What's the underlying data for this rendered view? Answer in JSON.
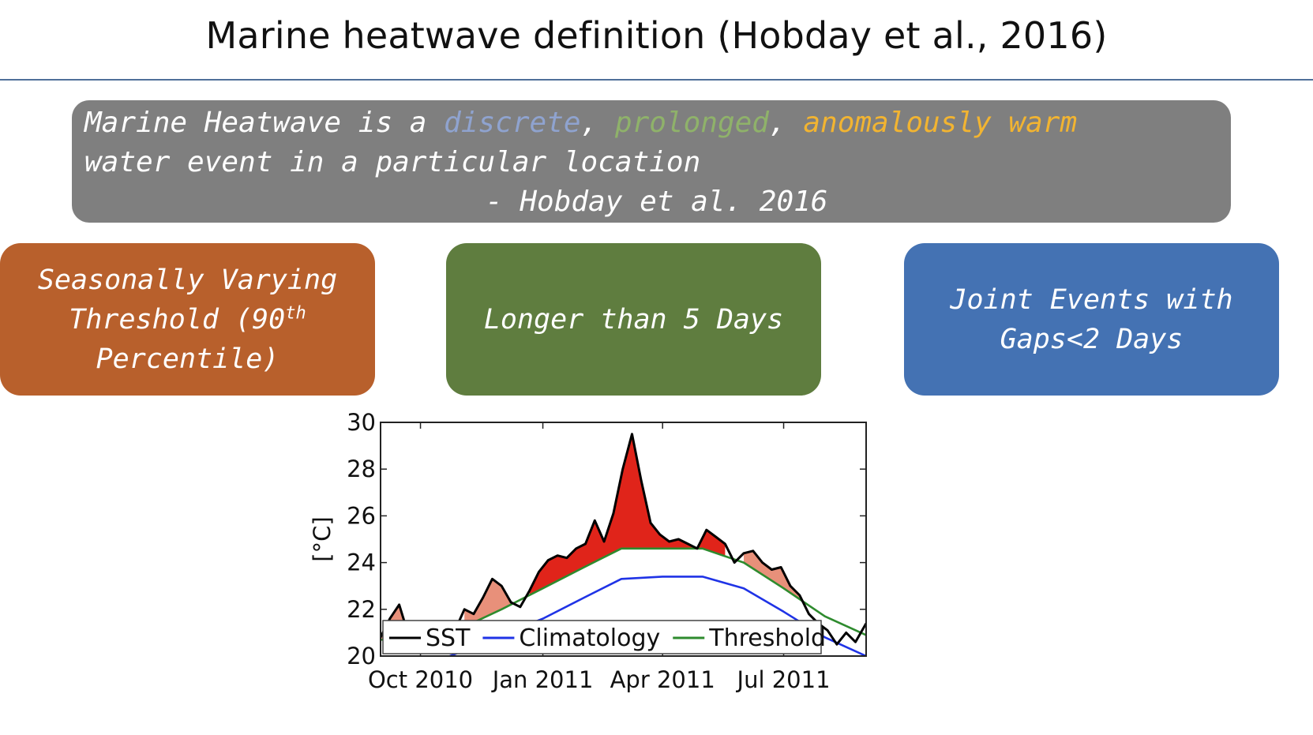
{
  "slide": {
    "title": "Marine heatwave definition (Hobday et al., 2016)"
  },
  "definition": {
    "part1": "Marine Heatwave is a ",
    "discrete": "discrete",
    "sep1": ", ",
    "prolonged": "prolonged",
    "sep2": ", ",
    "anomalous": "anomalously warm",
    "line2": "water event in a particular location",
    "citation": "- Hobday et al. 2016",
    "colors": {
      "discrete": "#8fa3cf",
      "prolonged": "#8fb26a",
      "anomalous": "#f2b431",
      "box": "#7f7f7f"
    }
  },
  "criteria": {
    "threshold_line1": "Seasonally Varying",
    "threshold_line2": "Threshold (90",
    "threshold_sup": "th",
    "threshold_line3": "Percentile)",
    "duration": "Longer than 5 Days",
    "joint_line1": "Joint Events with",
    "joint_line2": "Gaps<2 Days",
    "colors": {
      "threshold": "#b8602c",
      "duration": "#5f7d3f",
      "joint": "#4472b3"
    }
  },
  "chart_data": {
    "type": "line",
    "xlabel": "",
    "ylabel": "[°C]",
    "ylim": [
      20,
      30
    ],
    "yticks": [
      "20",
      "22",
      "24",
      "26",
      "28",
      "30"
    ],
    "xticks": [
      {
        "date": "2010-10-01",
        "label": "Oct 2010"
      },
      {
        "date": "2011-01-01",
        "label": "Jan 2011"
      },
      {
        "date": "2011-04-01",
        "label": "Apr 2011"
      },
      {
        "date": "2011-07-01",
        "label": "Jul 2011"
      }
    ],
    "xlim": [
      "2010-09-01",
      "2011-09-01"
    ],
    "legend_position": "bottom",
    "grid": false,
    "series": [
      {
        "name": "SST",
        "color": "#000000",
        "x": [
          "2010-09-01",
          "2010-09-08",
          "2010-09-15",
          "2010-09-22",
          "2010-09-29",
          "2010-10-06",
          "2010-10-13",
          "2010-10-20",
          "2010-10-27",
          "2010-11-03",
          "2010-11-10",
          "2010-11-17",
          "2010-11-24",
          "2010-12-01",
          "2010-12-08",
          "2010-12-15",
          "2010-12-22",
          "2010-12-29",
          "2011-01-05",
          "2011-01-12",
          "2011-01-19",
          "2011-01-26",
          "2011-02-02",
          "2011-02-09",
          "2011-02-16",
          "2011-02-23",
          "2011-03-02",
          "2011-03-09",
          "2011-03-16",
          "2011-03-23",
          "2011-03-30",
          "2011-04-06",
          "2011-04-13",
          "2011-04-20",
          "2011-04-27",
          "2011-05-04",
          "2011-05-11",
          "2011-05-18",
          "2011-05-25",
          "2011-06-01",
          "2011-06-08",
          "2011-06-15",
          "2011-06-22",
          "2011-06-29",
          "2011-07-06",
          "2011-07-13",
          "2011-07-20",
          "2011-07-27",
          "2011-08-03",
          "2011-08-10",
          "2011-08-17",
          "2011-08-24",
          "2011-09-01"
        ],
        "values": [
          20.8,
          21.6,
          22.2,
          20.9,
          20.7,
          20.6,
          20.5,
          20.8,
          21.1,
          22.0,
          21.8,
          22.5,
          23.3,
          23.0,
          22.3,
          22.1,
          22.8,
          23.6,
          24.1,
          24.3,
          24.2,
          24.6,
          24.8,
          25.8,
          24.9,
          26.1,
          28.0,
          29.5,
          27.5,
          25.7,
          25.2,
          24.9,
          25.0,
          24.8,
          24.6,
          25.4,
          25.1,
          24.8,
          24.0,
          24.4,
          24.5,
          24.0,
          23.7,
          23.8,
          23.0,
          22.6,
          21.8,
          21.4,
          21.1,
          20.5,
          21.0,
          20.6,
          21.4
        ]
      },
      {
        "name": "Climatology",
        "color": "#1f33e6",
        "x": [
          "2010-09-01",
          "2010-10-01",
          "2010-11-01",
          "2010-12-01",
          "2011-01-01",
          "2011-02-01",
          "2011-03-01",
          "2011-04-01",
          "2011-05-01",
          "2011-06-01",
          "2011-07-01",
          "2011-08-01",
          "2011-09-01"
        ],
        "values": [
          18.9,
          19.5,
          20.2,
          20.9,
          21.6,
          22.5,
          23.3,
          23.4,
          23.4,
          22.9,
          21.9,
          20.8,
          20.0
        ]
      },
      {
        "name": "Threshold",
        "color": "#2e8b2e",
        "x": [
          "2010-09-01",
          "2010-10-01",
          "2010-11-01",
          "2010-12-01",
          "2011-01-01",
          "2011-02-01",
          "2011-03-01",
          "2011-04-01",
          "2011-05-01",
          "2011-06-01",
          "2011-07-01",
          "2011-08-01",
          "2011-09-01"
        ],
        "values": [
          20.7,
          20.7,
          21.2,
          22.0,
          22.9,
          23.8,
          24.6,
          24.6,
          24.6,
          24.0,
          22.9,
          21.7,
          20.9
        ]
      }
    ],
    "fill": {
      "moderate_color": "#e8907a",
      "peak_color": "#e0241a"
    }
  }
}
